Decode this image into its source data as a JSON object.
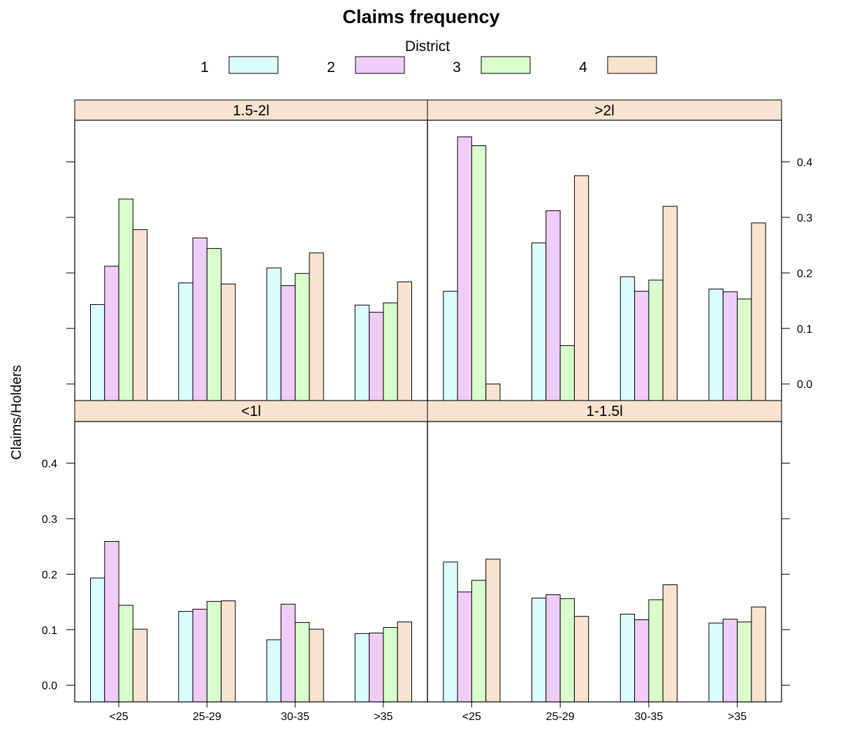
{
  "chart_data": {
    "type": "bar",
    "title": "Claims frequency",
    "ylabel": "Claims/Holders",
    "xlabel": "",
    "ylim": [
      -0.03,
      0.475
    ],
    "y_ticks": [
      "0.0",
      "0.1",
      "0.2",
      "0.3",
      "0.4"
    ],
    "categories": [
      "<25",
      "25-29",
      "30-35",
      ">35"
    ],
    "legend": {
      "title": "District",
      "placement": "top",
      "entries": [
        {
          "label": "1",
          "color": "#ccffff"
        },
        {
          "label": "2",
          "color": "#ffccff"
        },
        {
          "label": "3",
          "color": "#ccffcc"
        },
        {
          "label": "4",
          "color": "#ffe5cc"
        }
      ]
    },
    "colors": {
      "series": [
        "#dcfdfd",
        "#f0cdf8",
        "#d9fdcc",
        "#f7e3cf"
      ],
      "strip": "#f7e3cf",
      "outline": "#000000"
    },
    "panels": [
      {
        "strip": "1.5-2l",
        "series": [
          {
            "name": "1",
            "values": [
              0.143,
              0.182,
              0.209,
              0.142
            ]
          },
          {
            "name": "2",
            "values": [
              0.212,
              0.263,
              0.177,
              0.129
            ]
          },
          {
            "name": "3",
            "values": [
              0.333,
              0.244,
              0.199,
              0.146
            ]
          },
          {
            "name": "4",
            "values": [
              0.278,
              0.18,
              0.236,
              0.184
            ]
          }
        ]
      },
      {
        "strip": ">2l",
        "series": [
          {
            "name": "1",
            "values": [
              0.167,
              0.254,
              0.193,
              0.171
            ]
          },
          {
            "name": "2",
            "values": [
              0.445,
              0.312,
              0.167,
              0.166
            ]
          },
          {
            "name": "3",
            "values": [
              0.429,
              0.069,
              0.187,
              0.153
            ]
          },
          {
            "name": "4",
            "values": [
              0.0,
              0.375,
              0.32,
              0.29
            ]
          }
        ]
      },
      {
        "strip": "<1l",
        "series": [
          {
            "name": "1",
            "values": [
              0.193,
              0.133,
              0.082,
              0.093
            ]
          },
          {
            "name": "2",
            "values": [
              0.259,
              0.137,
              0.146,
              0.094
            ]
          },
          {
            "name": "3",
            "values": [
              0.144,
              0.151,
              0.113,
              0.104
            ]
          },
          {
            "name": "4",
            "values": [
              0.101,
              0.152,
              0.101,
              0.114
            ]
          }
        ]
      },
      {
        "strip": "1-1.5l",
        "series": [
          {
            "name": "1",
            "values": [
              0.222,
              0.157,
              0.128,
              0.112
            ]
          },
          {
            "name": "2",
            "values": [
              0.168,
              0.163,
              0.118,
              0.119
            ]
          },
          {
            "name": "3",
            "values": [
              0.189,
              0.156,
              0.154,
              0.114
            ]
          },
          {
            "name": "4",
            "values": [
              0.227,
              0.124,
              0.181,
              0.141
            ]
          }
        ]
      }
    ]
  }
}
